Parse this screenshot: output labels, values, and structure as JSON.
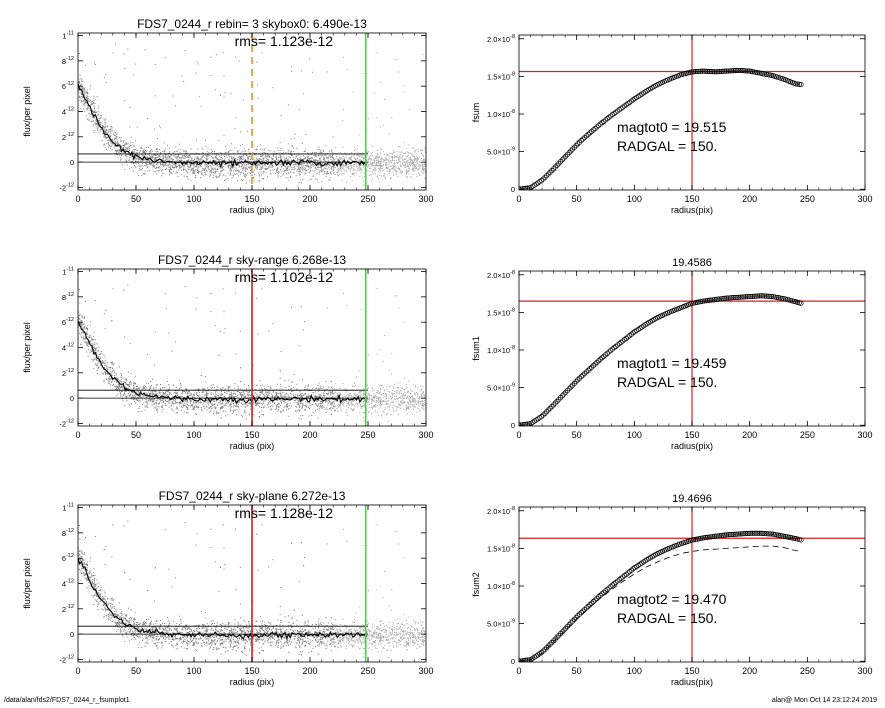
{
  "footer": {
    "left": "/data/alan/fds2/FDS7_0244_r_fsumplot1",
    "right": "alan@  Mon Oct 14 23:12:24 2019"
  },
  "colors": {
    "red": "#d42020",
    "green": "#30e030",
    "orange": "#f0902a",
    "scatter": "#808080",
    "scatter_light": "#a8a8a8"
  },
  "chart_data": [
    {
      "type": "scatter",
      "panel": "left-1",
      "title": "FDS7_0244_r rebin= 3    skybox0:  6.490e-13",
      "annotation": "rms= 1.123e-12",
      "xlabel": "radius (pix)",
      "ylabel": "flux/per pixel",
      "xlim": [
        0,
        300
      ],
      "ylim": [
        -2.2e-12,
        1.02e-11
      ],
      "xticks": [
        "0",
        "50",
        "100",
        "150",
        "200",
        "250",
        "300"
      ],
      "yticks": [
        {
          "m": "-2",
          "e": "-12",
          "v": -2e-12
        },
        {
          "m": "0",
          "e": "",
          "v": 0
        },
        {
          "m": "2",
          "e": "-12",
          "v": 2e-12
        },
        {
          "m": "4",
          "e": "-12",
          "v": 4e-12
        },
        {
          "m": "6",
          "e": "-12",
          "v": 6e-12
        },
        {
          "m": "8",
          "e": "-12",
          "v": 8e-12
        },
        {
          "m": "1",
          "e": "-11",
          "v": 1e-11
        }
      ],
      "profile": {
        "x": [
          0,
          5,
          10,
          15,
          20,
          25,
          30,
          40,
          50,
          60,
          70,
          80,
          90,
          100,
          150,
          200,
          250
        ],
        "y": [
          6e-12,
          5.3e-12,
          4.3e-12,
          3.5e-12,
          2.7e-12,
          2.1e-12,
          1.6e-12,
          9e-13,
          4.5e-13,
          2.5e-13,
          1e-13,
          0.0,
          -5e-14,
          -8e-14,
          -1e-13,
          -5e-14,
          -1e-13
        ]
      },
      "hlines": [
        0,
        6.49e-13
      ],
      "vlines": [
        {
          "x": 150,
          "color": "orange",
          "dashed": true
        },
        {
          "x": 248,
          "color": "green",
          "dashed": false
        }
      ]
    },
    {
      "type": "line",
      "panel": "right-1",
      "title": "",
      "annotation_lines": [
        "magtot0 = 19.515",
        "RADGAL =    150."
      ],
      "xlabel": "radius(pix)",
      "ylabel": "fsum",
      "xlim": [
        0,
        300
      ],
      "ylim": [
        -1e-10,
        2.05e-08
      ],
      "xticks": [
        "0",
        "50",
        "100",
        "150",
        "200",
        "250",
        "300"
      ],
      "yticks": [
        {
          "m": "0",
          "e": "",
          "v": 0
        },
        {
          "m": "5.0×10",
          "e": "-9",
          "v": 5e-09
        },
        {
          "m": "1.0×10",
          "e": "-8",
          "v": 1e-08
        },
        {
          "m": "1.5×10",
          "e": "-8",
          "v": 1.5e-08
        },
        {
          "m": "2.0×10",
          "e": "-8",
          "v": 2e-08
        }
      ],
      "curve": {
        "x": [
          0,
          10,
          20,
          30,
          40,
          50,
          60,
          70,
          80,
          90,
          100,
          110,
          120,
          130,
          140,
          150,
          160,
          170,
          180,
          190,
          200,
          210,
          220,
          230,
          240,
          245
        ],
        "y": [
          0,
          2e-10,
          1.2e-09,
          2.7e-09,
          4.3e-09,
          5.9e-09,
          7.3e-09,
          8.6e-09,
          9.8e-09,
          1.09e-08,
          1.2e-08,
          1.3e-08,
          1.39e-08,
          1.46e-08,
          1.52e-08,
          1.56e-08,
          1.57e-08,
          1.56e-08,
          1.57e-08,
          1.58e-08,
          1.57e-08,
          1.54e-08,
          1.51e-08,
          1.46e-08,
          1.4e-08,
          1.39e-08
        ]
      },
      "hline": 1.565e-08,
      "vline": 150
    },
    {
      "type": "scatter",
      "panel": "left-2",
      "title": "FDS7_0244_r sky-range  6.268e-13",
      "annotation": "rms= 1.102e-12",
      "xlabel": "radius (pix)",
      "ylabel": "flux/per pixel",
      "xlim": [
        0,
        300
      ],
      "ylim": [
        -2.2e-12,
        1.02e-11
      ],
      "xticks": [
        "0",
        "50",
        "100",
        "150",
        "200",
        "250",
        "300"
      ],
      "yticks": [
        {
          "m": "-2",
          "e": "-12",
          "v": -2e-12
        },
        {
          "m": "0",
          "e": "",
          "v": 0
        },
        {
          "m": "2",
          "e": "-12",
          "v": 2e-12
        },
        {
          "m": "4",
          "e": "-12",
          "v": 4e-12
        },
        {
          "m": "6",
          "e": "-12",
          "v": 6e-12
        },
        {
          "m": "8",
          "e": "-12",
          "v": 8e-12
        },
        {
          "m": "1",
          "e": "-11",
          "v": 1e-11
        }
      ],
      "profile": {
        "x": [
          0,
          5,
          10,
          15,
          20,
          25,
          30,
          40,
          50,
          60,
          70,
          80,
          90,
          100,
          150,
          200,
          250
        ],
        "y": [
          6e-12,
          5.3e-12,
          4.3e-12,
          3.5e-12,
          2.7e-12,
          2.1e-12,
          1.6e-12,
          9e-13,
          4.5e-13,
          2.5e-13,
          1e-13,
          0.0,
          -5e-14,
          -8e-14,
          -1e-13,
          -5e-14,
          -1e-13
        ]
      },
      "hlines": [
        0,
        6.268e-13
      ],
      "vlines": [
        {
          "x": 150,
          "color": "red",
          "dashed": false
        },
        {
          "x": 248,
          "color": "green",
          "dashed": false
        }
      ]
    },
    {
      "type": "line",
      "panel": "right-2",
      "title": "19.4586",
      "annotation_lines": [
        "magtot1 = 19.459",
        "RADGAL =    150."
      ],
      "xlabel": "radius(pix)",
      "ylabel": "fsum1",
      "xlim": [
        0,
        300
      ],
      "ylim": [
        -1e-10,
        2.05e-08
      ],
      "xticks": [
        "0",
        "50",
        "100",
        "150",
        "200",
        "250",
        "300"
      ],
      "yticks": [
        {
          "m": "0",
          "e": "",
          "v": 0
        },
        {
          "m": "5.0×10",
          "e": "-9",
          "v": 5e-09
        },
        {
          "m": "1.0×10",
          "e": "-8",
          "v": 1e-08
        },
        {
          "m": "1.5×10",
          "e": "-8",
          "v": 1.5e-08
        },
        {
          "m": "2.0×10",
          "e": "-8",
          "v": 2e-08
        }
      ],
      "curve": {
        "x": [
          0,
          10,
          20,
          30,
          40,
          50,
          60,
          70,
          80,
          90,
          100,
          110,
          120,
          130,
          140,
          150,
          160,
          170,
          180,
          190,
          200,
          210,
          220,
          230,
          240,
          245
        ],
        "y": [
          0,
          2e-10,
          1.2e-09,
          2.7e-09,
          4.3e-09,
          5.9e-09,
          7.3e-09,
          8.7e-09,
          1e-08,
          1.12e-08,
          1.24e-08,
          1.34e-08,
          1.43e-08,
          1.5e-08,
          1.56e-08,
          1.62e-08,
          1.65e-08,
          1.67e-08,
          1.69e-08,
          1.7e-08,
          1.71e-08,
          1.72e-08,
          1.71e-08,
          1.68e-08,
          1.64e-08,
          1.62e-08
        ]
      },
      "hline": 1.65e-08,
      "vline": 150
    },
    {
      "type": "scatter",
      "panel": "left-3",
      "title": "FDS7_0244_r sky-plane  6.272e-13",
      "annotation": "rms= 1.128e-12",
      "xlabel": "radius (pix)",
      "ylabel": "flux/per pixel",
      "xlim": [
        0,
        300
      ],
      "ylim": [
        -2.2e-12,
        1.02e-11
      ],
      "xticks": [
        "0",
        "50",
        "100",
        "150",
        "200",
        "250",
        "300"
      ],
      "yticks": [
        {
          "m": "-2",
          "e": "-12",
          "v": -2e-12
        },
        {
          "m": "0",
          "e": "",
          "v": 0
        },
        {
          "m": "2",
          "e": "-12",
          "v": 2e-12
        },
        {
          "m": "4",
          "e": "-12",
          "v": 4e-12
        },
        {
          "m": "6",
          "e": "-12",
          "v": 6e-12
        },
        {
          "m": "8",
          "e": "-12",
          "v": 8e-12
        },
        {
          "m": "1",
          "e": "-11",
          "v": 1e-11
        }
      ],
      "profile": {
        "x": [
          0,
          5,
          10,
          15,
          20,
          25,
          30,
          40,
          50,
          60,
          70,
          80,
          90,
          100,
          150,
          200,
          250
        ],
        "y": [
          6e-12,
          5.3e-12,
          4.3e-12,
          3.5e-12,
          2.7e-12,
          2.1e-12,
          1.6e-12,
          9e-13,
          4.5e-13,
          2.5e-13,
          1e-13,
          0.0,
          -5e-14,
          -8e-14,
          -1e-13,
          -5e-14,
          -1e-13
        ]
      },
      "hlines": [
        0,
        6.272e-13
      ],
      "vlines": [
        {
          "x": 150,
          "color": "red",
          "dashed": false
        },
        {
          "x": 248,
          "color": "green",
          "dashed": false
        }
      ]
    },
    {
      "type": "line",
      "panel": "right-3",
      "title": "19.4696",
      "annotation_lines": [
        "magtot2 = 19.470",
        "RADGAL =    150."
      ],
      "xlabel": "radius(pix)",
      "ylabel": "fsum2",
      "xlim": [
        0,
        300
      ],
      "ylim": [
        -1e-10,
        2.05e-08
      ],
      "xticks": [
        "0",
        "50",
        "100",
        "150",
        "200",
        "250",
        "300"
      ],
      "yticks": [
        {
          "m": "0",
          "e": "",
          "v": 0
        },
        {
          "m": "5.0×10",
          "e": "-9",
          "v": 5e-09
        },
        {
          "m": "1.0×10",
          "e": "-8",
          "v": 1e-08
        },
        {
          "m": "1.5×10",
          "e": "-8",
          "v": 1.5e-08
        },
        {
          "m": "2.0×10",
          "e": "-8",
          "v": 2e-08
        }
      ],
      "curve": {
        "x": [
          0,
          10,
          20,
          30,
          40,
          50,
          60,
          70,
          80,
          90,
          100,
          110,
          120,
          130,
          140,
          150,
          160,
          170,
          180,
          190,
          200,
          210,
          220,
          230,
          240,
          245
        ],
        "y": [
          0,
          2e-10,
          1.2e-09,
          2.7e-09,
          4.3e-09,
          5.9e-09,
          7.3e-09,
          8.7e-09,
          1e-08,
          1.12e-08,
          1.24e-08,
          1.34e-08,
          1.43e-08,
          1.5e-08,
          1.56e-08,
          1.61e-08,
          1.64e-08,
          1.66e-08,
          1.68e-08,
          1.69e-08,
          1.7e-08,
          1.7e-08,
          1.69e-08,
          1.66e-08,
          1.63e-08,
          1.61e-08
        ]
      },
      "dashed_curve": {
        "x": [
          0,
          10,
          20,
          30,
          40,
          50,
          60,
          70,
          80,
          90,
          100,
          110,
          120,
          130,
          140,
          150,
          160,
          170,
          180,
          190,
          200,
          210,
          220,
          230,
          240,
          245
        ],
        "y": [
          0,
          2e-10,
          1.1e-09,
          2.6e-09,
          4.1e-09,
          5.6e-09,
          7e-09,
          8.3e-09,
          9.5e-09,
          1.06e-08,
          1.16e-08,
          1.25e-08,
          1.32e-08,
          1.38e-08,
          1.43e-08,
          1.46e-08,
          1.48e-08,
          1.49e-08,
          1.5e-08,
          1.51e-08,
          1.52e-08,
          1.53e-08,
          1.53e-08,
          1.51e-08,
          1.47e-08,
          1.46e-08
        ]
      },
      "hline": 1.635e-08,
      "vline": 150
    }
  ]
}
